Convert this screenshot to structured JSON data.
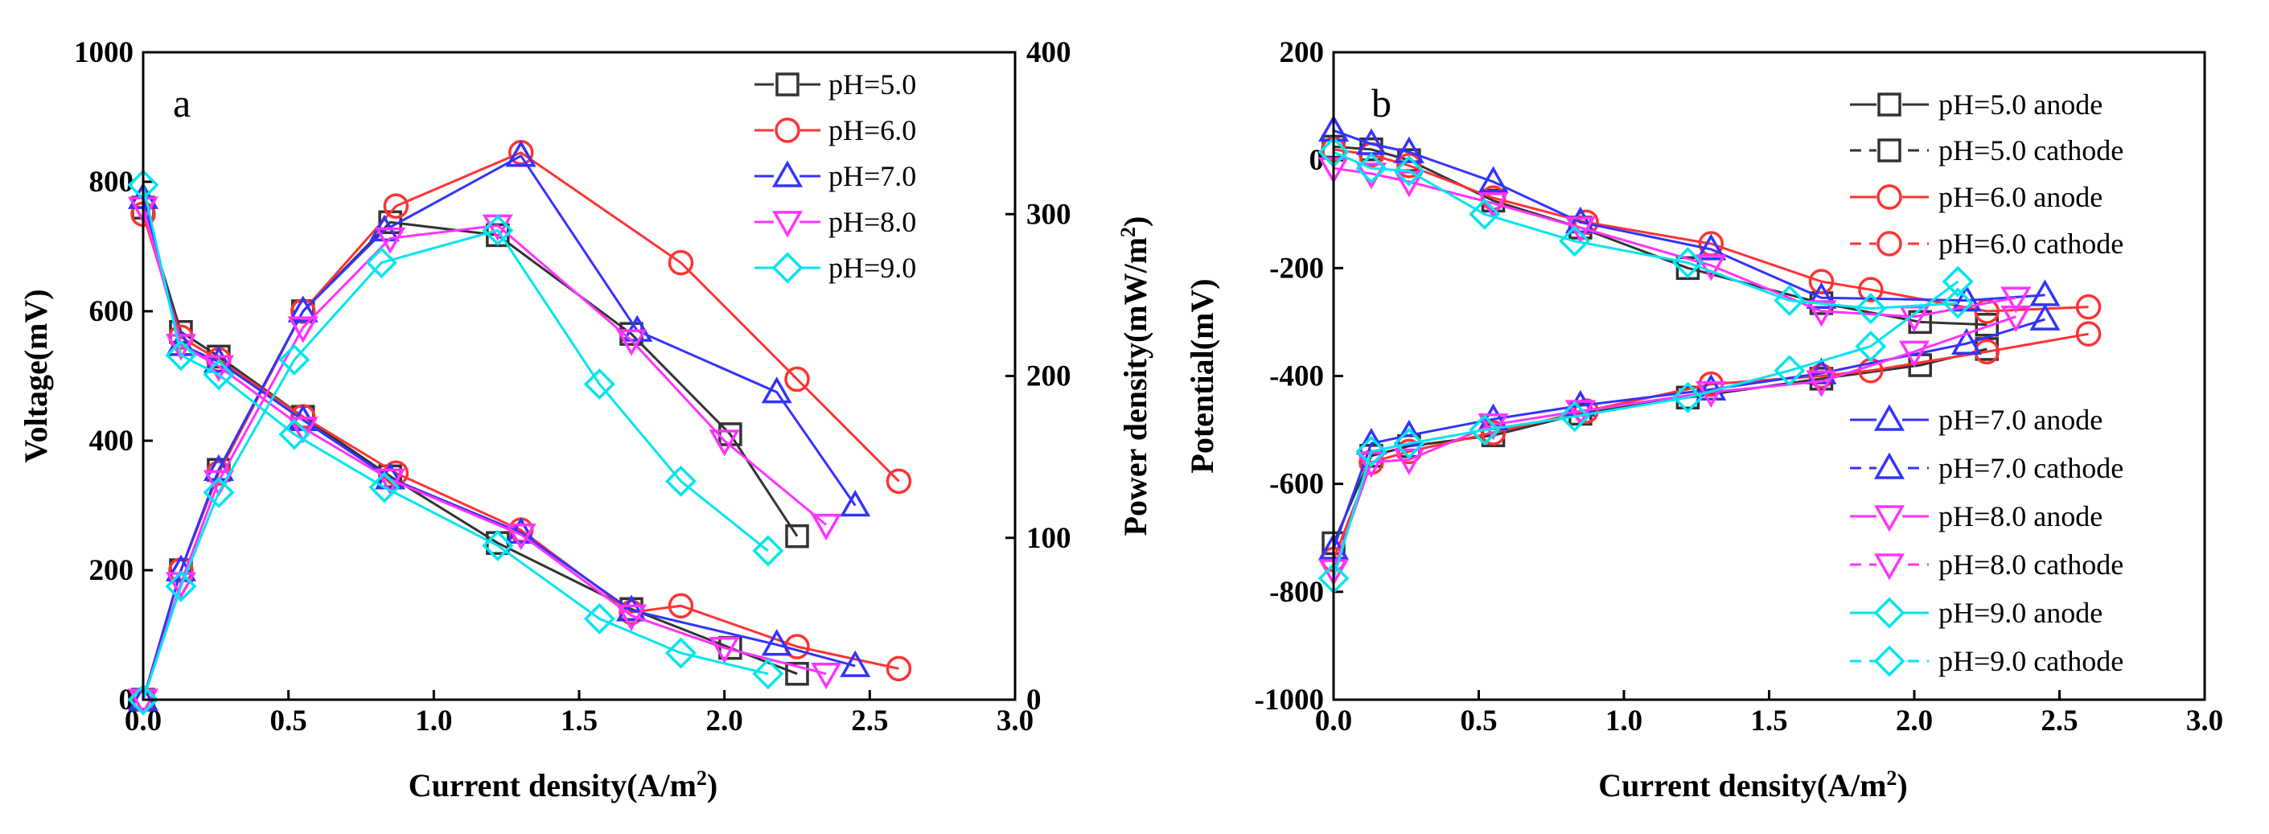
{
  "chart_data": [
    {
      "panel": "a",
      "type": "line",
      "xlabel": "Current density(A/m²)",
      "ylabel_left": "Voltage(mV)",
      "ylabel_right": "Power density(mW/m²)",
      "xlim": [
        0,
        3
      ],
      "ylim_left": [
        0,
        1000
      ],
      "ylim_right": [
        0,
        400
      ],
      "xticks": [
        "0.0",
        "0.5",
        "1.0",
        "1.5",
        "2.0",
        "2.5",
        "3.0"
      ],
      "yticks_left": [
        "0",
        "200",
        "400",
        "600",
        "800",
        "1000"
      ],
      "yticks_right": [
        "0",
        "100",
        "200",
        "300",
        "400"
      ],
      "legend_position": "top-right",
      "series": [
        {
          "name": "pH=5.0",
          "color": "#333333",
          "marker": "square",
          "voltage": {
            "x": [
              0,
              0.13,
              0.26,
              0.55,
              0.85,
              1.22,
              1.68,
              2.02,
              2.25
            ],
            "y": [
              760,
              568,
              530,
              437,
              345,
              242,
              140,
              80,
              40
            ]
          },
          "power": {
            "x": [
              0,
              0.13,
              0.26,
              0.55,
              0.85,
              1.22,
              1.68,
              2.02,
              2.25
            ],
            "y": [
              0,
              80,
              142,
              240,
              295,
              287,
              226,
              164,
              101
            ]
          }
        },
        {
          "name": "pH=6.0",
          "color": "#ff3333",
          "marker": "circle",
          "voltage": {
            "x": [
              0,
              0.13,
              0.26,
              0.55,
              0.87,
              1.3,
              1.68,
              1.85,
              2.25,
              2.6
            ],
            "y": [
              750,
              560,
              525,
              437,
              350,
              262,
              135,
              145,
              82,
              48
            ]
          },
          "power": {
            "x": [
              0,
              0.13,
              0.26,
              0.55,
              0.87,
              1.3,
              1.85,
              2.25,
              2.6
            ],
            "y": [
              0,
              80,
              140,
              240,
              305,
              338,
              270,
              198,
              135
            ]
          }
        },
        {
          "name": "pH=7.0",
          "color": "#3333ff",
          "marker": "triangle-up",
          "voltage": {
            "x": [
              0,
              0.13,
              0.26,
              0.55,
              0.85,
              1.3,
              1.68,
              2.18,
              2.45
            ],
            "y": [
              775,
              548,
              522,
              432,
              342,
              258,
              138,
              85,
              52
            ]
          },
          "power": {
            "x": [
              0,
              0.13,
              0.26,
              0.55,
              0.83,
              1.3,
              1.7,
              2.18,
              2.45
            ],
            "y": [
              0,
              80,
              142,
              240,
              290,
              336,
              228,
              190,
              120
            ]
          }
        },
        {
          "name": "pH=8.0",
          "color": "#ff33ff",
          "marker": "triangle-down",
          "voltage": {
            "x": [
              0,
              0.13,
              0.26,
              0.55,
              0.85,
              1.3,
              1.68,
              2.0,
              2.35
            ],
            "y": [
              760,
              548,
              515,
              420,
              340,
              255,
              130,
              80,
              40
            ]
          },
          "power": {
            "x": [
              0,
              0.13,
              0.26,
              0.55,
              0.85,
              1.22,
              1.68,
              2.0,
              2.35
            ],
            "y": [
              0,
              72,
              135,
              230,
              285,
              293,
              222,
              160,
              108
            ]
          }
        },
        {
          "name": "pH=9.0",
          "color": "#00e5ee",
          "marker": "diamond",
          "voltage": {
            "x": [
              0,
              0.13,
              0.26,
              0.52,
              0.83,
              1.22,
              1.57,
              1.85,
              2.15
            ],
            "y": [
              795,
              532,
              502,
              410,
              328,
              238,
              125,
              72,
              40
            ]
          },
          "power": {
            "x": [
              0,
              0.13,
              0.26,
              0.52,
              0.82,
              1.22,
              1.57,
              1.85,
              2.15
            ],
            "y": [
              0,
              70,
              128,
              210,
              270,
              290,
              195,
              135,
              92
            ]
          }
        }
      ]
    },
    {
      "panel": "b",
      "type": "line",
      "xlabel": "Current density(A/m²)",
      "ylabel": "Potential(mV)",
      "xlim": [
        0,
        3
      ],
      "ylim": [
        -1000,
        200
      ],
      "xticks": [
        "0.0",
        "0.5",
        "1.0",
        "1.5",
        "2.0",
        "2.5",
        "3.0"
      ],
      "yticks": [
        "-1000",
        "-800",
        "-600",
        "-400",
        "-200",
        "0",
        "200"
      ],
      "legend_position": "right",
      "series": [
        {
          "name": "pH=5.0 anode",
          "color": "#333333",
          "marker": "square",
          "x": [
            0,
            0.13,
            0.26,
            0.55,
            0.85,
            1.22,
            1.68,
            2.02,
            2.25
          ],
          "y": [
            -710,
            -548,
            -530,
            -510,
            -470,
            -440,
            -405,
            -380,
            -350
          ]
        },
        {
          "name": "pH=5.0 cathode",
          "color": "#333333",
          "marker": "square",
          "x": [
            0,
            0.13,
            0.26,
            0.55,
            0.85,
            1.22,
            1.68,
            2.02,
            2.25
          ],
          "y": [
            25,
            20,
            0,
            -75,
            -125,
            -200,
            -265,
            -300,
            -305
          ]
        },
        {
          "name": "pH=6.0 anode",
          "color": "#ff3333",
          "marker": "circle",
          "x": [
            0,
            0.13,
            0.26,
            0.55,
            0.87,
            1.3,
            1.68,
            1.85,
            2.25,
            2.6
          ],
          "y": [
            -740,
            -560,
            -540,
            -505,
            -465,
            -415,
            -400,
            -390,
            -355,
            -322
          ]
        },
        {
          "name": "pH=6.0 cathode",
          "color": "#ff3333",
          "marker": "circle",
          "x": [
            0,
            0.13,
            0.26,
            0.55,
            0.87,
            1.3,
            1.68,
            1.85,
            2.25,
            2.6
          ],
          "y": [
            20,
            10,
            -10,
            -70,
            -115,
            -155,
            -225,
            -240,
            -280,
            -272
          ]
        },
        {
          "name": "pH=7.0 anode",
          "color": "#3333ff",
          "marker": "triangle-up",
          "x": [
            0,
            0.13,
            0.26,
            0.55,
            0.85,
            1.3,
            1.68,
            2.18,
            2.45
          ],
          "y": [
            -720,
            -525,
            -510,
            -480,
            -455,
            -425,
            -395,
            -340,
            -295
          ]
        },
        {
          "name": "pH=7.0 cathode",
          "color": "#3333ff",
          "marker": "triangle-up",
          "x": [
            0,
            0.13,
            0.26,
            0.55,
            0.85,
            1.3,
            1.68,
            2.18,
            2.45
          ],
          "y": [
            55,
            30,
            15,
            -40,
            -115,
            -165,
            -255,
            -260,
            -250
          ]
        },
        {
          "name": "pH=8.0 anode",
          "color": "#ff33ff",
          "marker": "triangle-down",
          "x": [
            0,
            0.13,
            0.26,
            0.55,
            0.85,
            1.3,
            1.68,
            2.0,
            2.35
          ],
          "y": [
            -760,
            -560,
            -555,
            -490,
            -465,
            -430,
            -410,
            -355,
            -290
          ]
        },
        {
          "name": "pH=8.0 cathode",
          "color": "#ff33ff",
          "marker": "triangle-down",
          "x": [
            0,
            0.13,
            0.26,
            0.55,
            0.85,
            1.3,
            1.68,
            2.0,
            2.35
          ],
          "y": [
            -15,
            -25,
            -40,
            -80,
            -125,
            -195,
            -280,
            -290,
            -255
          ]
        },
        {
          "name": "pH=9.0 anode",
          "color": "#00e5ee",
          "marker": "diamond",
          "x": [
            0,
            0.13,
            0.26,
            0.52,
            0.83,
            1.22,
            1.57,
            1.85,
            2.15
          ],
          "y": [
            -775,
            -540,
            -525,
            -500,
            -475,
            -440,
            -390,
            -345,
            -225
          ]
        },
        {
          "name": "pH=9.0 cathode",
          "color": "#00e5ee",
          "marker": "diamond",
          "x": [
            0,
            0.13,
            0.26,
            0.52,
            0.83,
            1.22,
            1.57,
            1.85,
            2.15
          ],
          "y": [
            15,
            -15,
            -20,
            -100,
            -150,
            -190,
            -260,
            -275,
            -265
          ]
        }
      ]
    }
  ]
}
